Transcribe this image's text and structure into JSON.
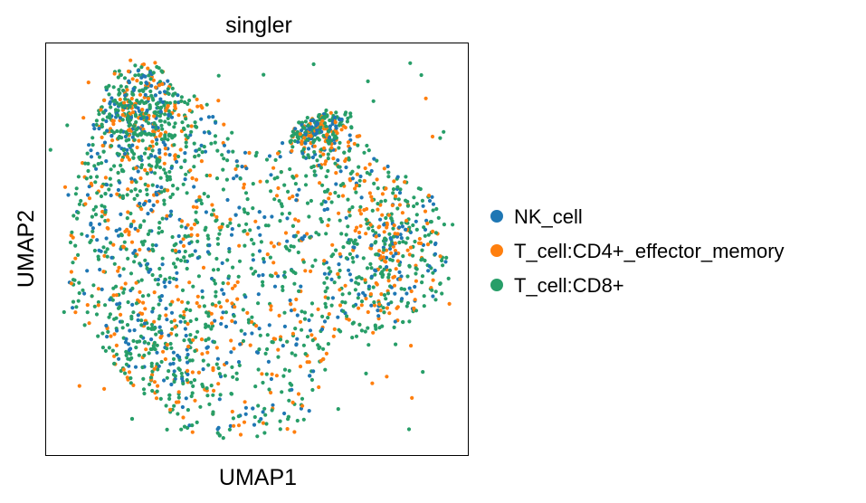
{
  "chart_data": {
    "type": "scatter",
    "title": "singler",
    "xlabel": "UMAP1",
    "ylabel": "UMAP2",
    "grid": false,
    "ticks": false,
    "legend_placement": "right",
    "series": [
      {
        "name": "NK_cell",
        "color": "#1f77b4"
      },
      {
        "name": "T_cell:CD4+_effector_memory",
        "color": "#ff7f0e"
      },
      {
        "name": "T_cell:CD8+",
        "color": "#279e68"
      }
    ]
  }
}
